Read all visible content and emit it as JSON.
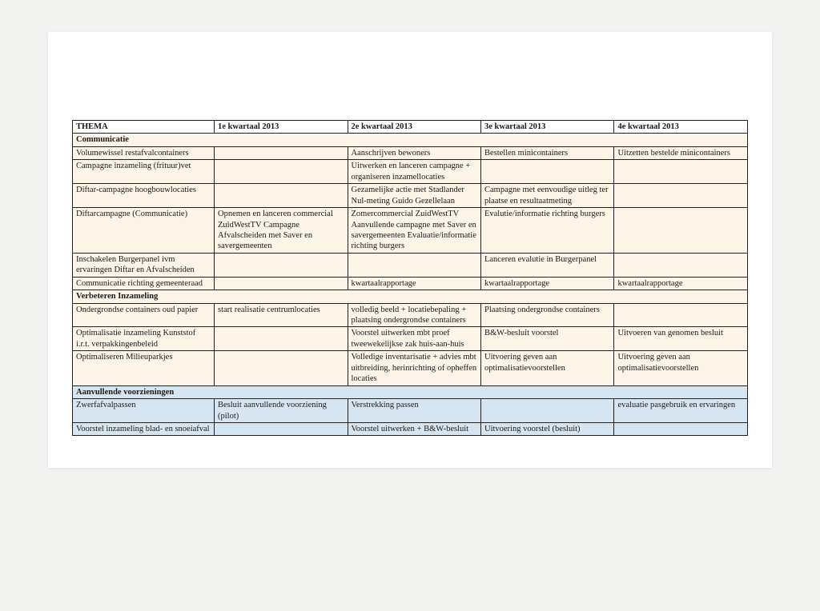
{
  "colors": {
    "page_bg": "#f2f2f0",
    "paper_bg": "#ffffff",
    "border": "#222222",
    "text": "#1a1a1a",
    "section_default_bg": "#fcf5e8",
    "section_blue_bg": "#d5e6f2"
  },
  "typography": {
    "font_family": "Times New Roman",
    "font_size_pt": 8,
    "header_weight": "bold"
  },
  "layout": {
    "columns": [
      "THEMA",
      "1e kwartaal 2013",
      "2e kwartaal 2013",
      "3e kwartaal 2013",
      "4e kwartaal 2013"
    ],
    "col_widths_pct": [
      21,
      19.75,
      19.75,
      19.75,
      19.75
    ]
  },
  "header": {
    "c0": "THEMA",
    "c1": "1e kwartaal 2013",
    "c2": "2e kwartaal 2013",
    "c3": "3e kwartaal 2013",
    "c4": "4e kwartaal 2013"
  },
  "sections": {
    "communicatie": {
      "title": "Communicatie",
      "bg": "#fcf5e8",
      "rows": [
        {
          "c0": "Volumewissel restafvalcontainers",
          "c1": "",
          "c2": "Aanschrijven bewoners",
          "c3": "Bestellen minicontainers",
          "c4": "Uitzetten bestelde minicontainers"
        },
        {
          "c0": "Campagne inzameling (frituur)vet",
          "c1": "",
          "c2": "Uitwerken en lanceren campagne + organiseren inzamellocaties",
          "c3": "",
          "c4": ""
        },
        {
          "c0": "Diftar-campagne hoogbouwlocaties",
          "c1": "",
          "c2": "Gezamelijke actie met Stadlander Nul-meting Guido Gezellelaan",
          "c3": "Campagne met eenvoudige uitleg ter plaatse en resultaatmeting",
          "c4": ""
        },
        {
          "c0": "Diftarcampagne (Communicatie)",
          "c1": "Opnemen en lanceren commercial ZuidWestTV\nCampagne Afvalscheiden met Saver en savergemeenten",
          "c2": "Zomercommercial ZuidWestTV Aanvullende campagne met Saver en savergemeenten Evaluatie/informatie richting burgers",
          "c3": "Evalutie/informatie richting burgers",
          "c4": ""
        },
        {
          "c0": "Inschakelen Burgerpanel ivm ervaringen Diftar en Afvalscheiden",
          "c1": "",
          "c2": "",
          "c3": "Lanceren evalutie in Burgerpanel",
          "c4": ""
        },
        {
          "c0": "Communicatie richting gemeenteraad",
          "c1": "",
          "c2": "kwartaalrapportage",
          "c3": "kwartaalrapportage",
          "c4": "kwartaalrapportage"
        }
      ]
    },
    "verbeteren": {
      "title": "Verbeteren Inzameling",
      "bg": "#fcf5e8",
      "rows": [
        {
          "c0": "Ondergrondse containers oud papier",
          "c1": "start realisatie centrumlocaties",
          "c2": "volledig beeld + locatiebepaling + plaatsing ondergrondse containers",
          "c3": "Plaatsing ondergrondse containers",
          "c4": ""
        },
        {
          "c0": "Optimalisatie inzameling Kunststof i.r.t. verpakkingenbeleid",
          "c1": "",
          "c2": "Voorstel uitwerken mbt proef tweewekelijkse zak huis-aan-huis",
          "c3": "B&W-besluit voorstel",
          "c4": "Uitvoeren van genomen besluit"
        },
        {
          "c0": "Optimaliseren Milieuparkjes",
          "c1": "",
          "c2": "Volledige inventarisatie + advies mbt uitbreiding, herinrichting of opheffen locaties",
          "c3": "Uitvoering geven aan optimalisatievoorstellen",
          "c4": "Uitvoering geven aan optimalisatievoorstellen"
        }
      ]
    },
    "aanvullende": {
      "title": "Aanvullende voorzieningen",
      "bg": "#d5e6f2",
      "rows": [
        {
          "c0": "Zwerfafvalpassen",
          "c1": "Besluit aanvullende voorziening (pilot)",
          "c2": "Verstrekking passen",
          "c3": "",
          "c4": "evaluatie pasgebruik en ervaringen"
        },
        {
          "c0": "Voorstel inzameling blad- en snoeiafval",
          "c1": "",
          "c2": "Voorstel uitwerken + B&W-besluit",
          "c3": "Uitvoering voorstel (besluit)",
          "c4": ""
        }
      ]
    }
  }
}
